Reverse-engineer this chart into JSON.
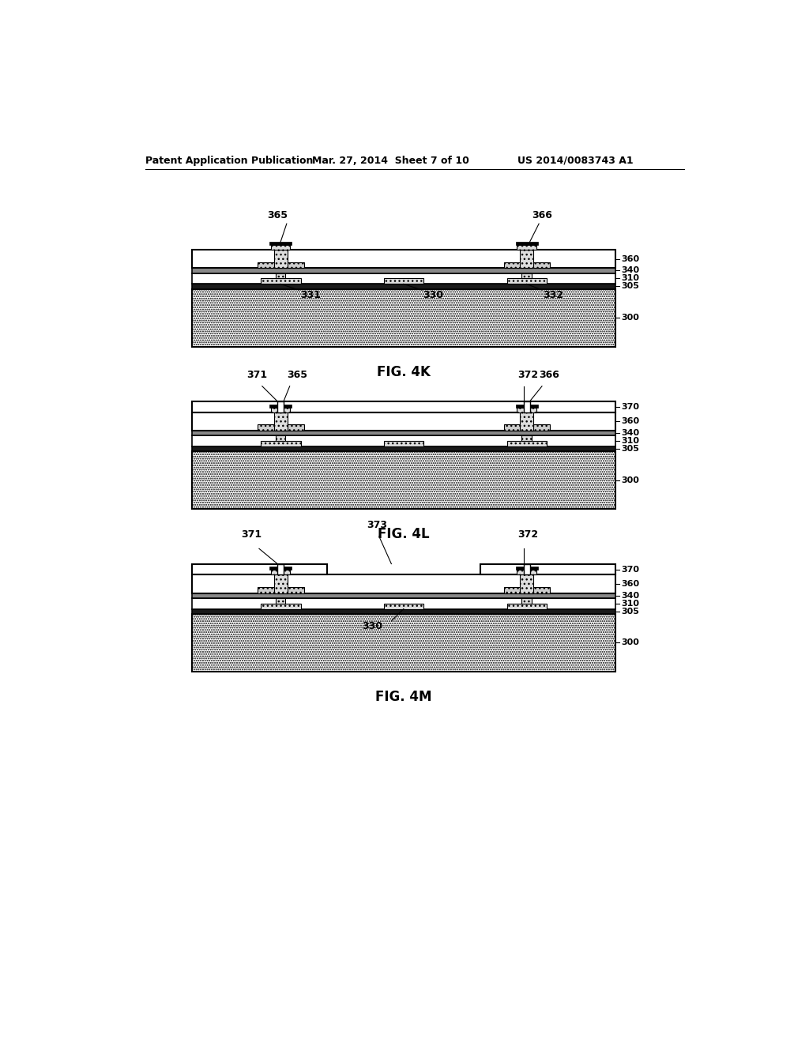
{
  "header_left": "Patent Application Publication",
  "header_mid": "Mar. 27, 2014  Sheet 7 of 10",
  "header_right": "US 2014/0083743 A1",
  "fig4k_label": "FIG. 4K",
  "fig4l_label": "FIG. 4L",
  "fig4m_label": "FIG. 4M",
  "bg_color": "#ffffff",
  "line_color": "#000000"
}
